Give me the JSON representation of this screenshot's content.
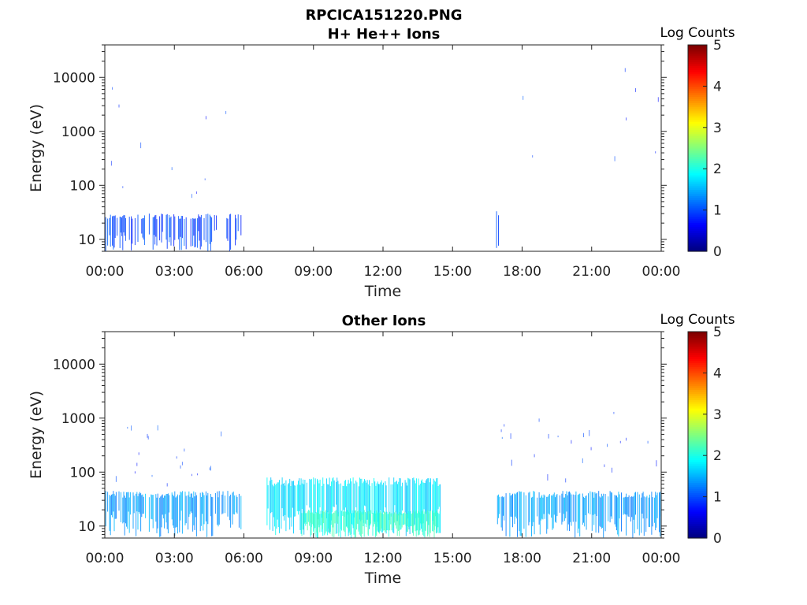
{
  "figure_title": "RPCICA151220.PNG",
  "chart_data": [
    {
      "type": "heatmap",
      "title": "H+ He++ Ions",
      "xlabel": "Time",
      "ylabel": "Energy (eV)",
      "x_ticks": [
        "00:00",
        "03:00",
        "06:00",
        "09:00",
        "12:00",
        "15:00",
        "18:00",
        "21:00",
        "00:00"
      ],
      "xlim_hours": [
        0,
        24
      ],
      "y_scale": "log",
      "y_ticks": [
        10,
        100,
        1000,
        10000
      ],
      "y_tick_labels": [
        "10",
        "100",
        "1000",
        "10000"
      ],
      "ylim": [
        6,
        40000
      ],
      "colorbar": {
        "label": "Log Counts",
        "range": [
          0,
          5
        ],
        "ticks": [
          "0",
          "1",
          "2",
          "3",
          "4",
          "5"
        ],
        "colormap": "jet"
      },
      "activity_blocks": [
        {
          "t_start": 0.0,
          "t_end": 5.9,
          "e_min": 6,
          "e_max": 30,
          "density": 0.55,
          "level": 0.4
        },
        {
          "t_start": 0.0,
          "t_end": 5.9,
          "e_min": 30,
          "e_max": 14000,
          "density": 0.06,
          "level": 0.3
        },
        {
          "t_start": 16.9,
          "t_end": 17.0,
          "e_min": 6,
          "e_max": 35,
          "density": 0.9,
          "level": 0.6
        },
        {
          "t_start": 16.9,
          "t_end": 24.0,
          "e_min": 200,
          "e_max": 15000,
          "density": 0.05,
          "level": 0.3
        }
      ]
    },
    {
      "type": "heatmap",
      "title": "Other Ions",
      "xlabel": "Time",
      "ylabel": "Energy (eV)",
      "x_ticks": [
        "00:00",
        "03:00",
        "06:00",
        "09:00",
        "12:00",
        "15:00",
        "18:00",
        "21:00",
        "00:00"
      ],
      "xlim_hours": [
        0,
        24
      ],
      "y_scale": "log",
      "y_ticks": [
        10,
        100,
        1000,
        10000
      ],
      "y_tick_labels": [
        "10",
        "100",
        "1000",
        "10000"
      ],
      "ylim": [
        6,
        40000
      ],
      "colorbar": {
        "label": "Log Counts",
        "range": [
          0,
          5
        ],
        "ticks": [
          "0",
          "1",
          "2",
          "3",
          "4",
          "5"
        ],
        "colormap": "jet"
      },
      "activity_blocks": [
        {
          "t_start": 0.0,
          "t_end": 5.9,
          "e_min": 6,
          "e_max": 45,
          "density": 0.75,
          "level": 0.9
        },
        {
          "t_start": 0.0,
          "t_end": 5.9,
          "e_min": 45,
          "e_max": 800,
          "density": 0.15,
          "level": 0.35
        },
        {
          "t_start": 7.0,
          "t_end": 14.5,
          "e_min": 6,
          "e_max": 80,
          "density": 0.85,
          "level": 1.3
        },
        {
          "t_start": 8.5,
          "t_end": 14.5,
          "e_min": 6,
          "e_max": 20,
          "density": 0.9,
          "level": 1.7
        },
        {
          "t_start": 16.9,
          "t_end": 24.0,
          "e_min": 6,
          "e_max": 45,
          "density": 0.75,
          "level": 0.9
        },
        {
          "t_start": 16.9,
          "t_end": 24.0,
          "e_min": 45,
          "e_max": 1500,
          "density": 0.15,
          "level": 0.35
        }
      ]
    }
  ]
}
